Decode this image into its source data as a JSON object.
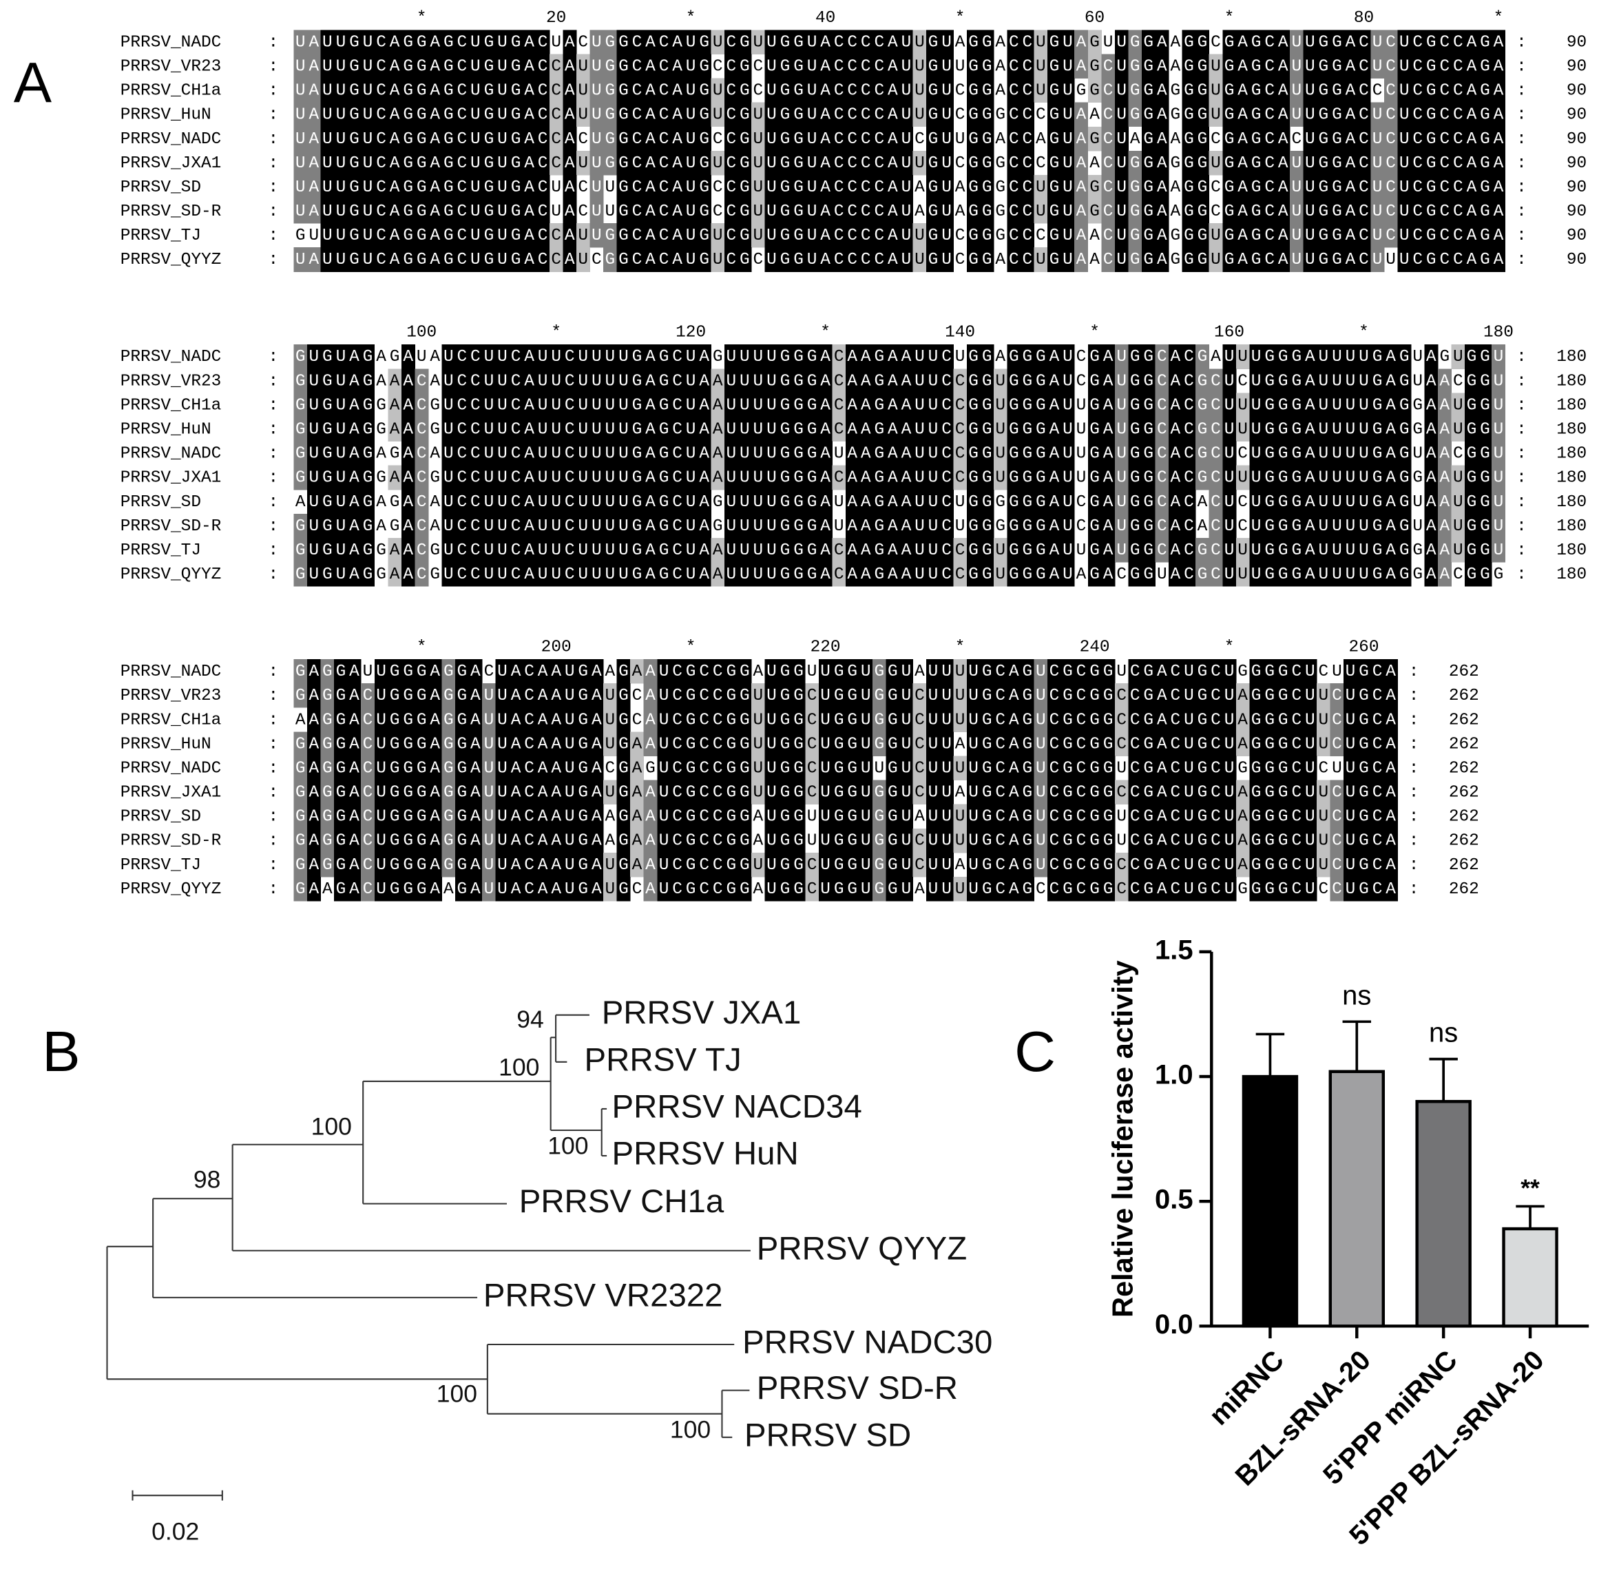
{
  "panels": {
    "a": "A",
    "b": "B",
    "c": "C"
  },
  "alignment": {
    "separator": ":",
    "blocks": [
      {
        "ruler": [
          "*",
          "20",
          "*",
          "40",
          "*",
          "60",
          "*",
          "80",
          "*"
        ],
        "end": 90,
        "rows": [
          {
            "name": "PRRSV_NADC",
            "seq": "UAUUGUCAGGAGCUGUGACUACUGGCACAUGUCGUUGGUACCCCAUUGUAGGACCUGUAGUUGGAAGGCGAGCAUUGGACUCUCGCCAGA"
          },
          {
            "name": "PRRSV_VR23",
            "seq": "UAUUGUCAGGAGCUGUGACCAUUGGCACAUGCCGCUGGUACCCCAUUGUUGGACCUGUAGCUGGAAGGUGAGCAUUGGACUCUCGCCAGA"
          },
          {
            "name": "PRRSV_CH1a",
            "seq": "UAUUGUCAGGAGCUGUGACCAUUGGCACAUGUCGCUGGUACCCCAUUGUCGGACCUGUGGCUGGAGGGUGAGCAUUGGACCCUCGCCAGA"
          },
          {
            "name": "PRRSV_HuN",
            "seq": "UAUUGUCAGGAGCUGUGACCAUUGGCACAUGUCGUUGGUACCCCAUUGUCGGGCCCGUAACUGGAGGGUGAGCAUUGGACUCUCGCCAGA"
          },
          {
            "name": "PRRSV_NADC",
            "seq": "UAUUGUCAGGAGCUGUGACCACUGGCACAUGCCGUUGGUACCCCAUCGUUGGACCAGUAGCUAGAAGGCGAGCACUGGACUCUCGCCAGA"
          },
          {
            "name": "PRRSV_JXA1",
            "seq": "UAUUGUCAGGAGCUGUGACCAUUGGCACAUGUCGUUGGUACCCCAUUGUCGGGCCCGUAACUGGAGGGUGAGCAUUGGACUCUCGCCAGA"
          },
          {
            "name": "PRRSV_SD",
            "seq": "UAUUGUCAGGAGCUGUGACUACUUGCACAUGCCGUUGGUACCCCAUAGUAGGGCCUGUAGCUGGAAGGCGAGCAUUGGACUCUCGCCAGA"
          },
          {
            "name": "PRRSV_SD-R",
            "seq": "UAUUGUCAGGAGCUGUGACUACUUGCACAUGCCGUUGGUACCCCAUAGUAGGGCCUGUAGCUGGAAGGCGAGCAUUGGACUCUCGCCAGA"
          },
          {
            "name": "PRRSV_TJ",
            "seq": "GUUUGUCAGGAGCUGUGACCAUUGGCACAUGUCGUUGGUACCCCAUUGUCGGGCCCGUAACUGGAGGGUGAGCAUUGGACUCUCGCCAGA"
          },
          {
            "name": "PRRSV_QYYZ",
            "seq": "UAUUGUCAGGAGCUGUGACCAUCGGCACAUGUCGCUGGUACCCCAUUGUCGGACCUGUAACUGGAGGGUGAGCAUUGGACUUUCGCCAGA"
          }
        ]
      },
      {
        "ruler": [
          "100",
          "*",
          "120",
          "*",
          "140",
          "*",
          "160",
          "*",
          "180"
        ],
        "end": 180,
        "rows": [
          {
            "name": "PRRSV_NADC",
            "seq": "GUGUAGAGAUAUCCUUCAUUCUUUUGAGCUAGUUUUGGGACAAGAAUUCUGGAGGGAUCGAUGGCACGAUUUGGGAUUUUGAGUAGUGGU"
          },
          {
            "name": "PRRSV_VR23",
            "seq": "GUGUAGAAACAUCCUUCAUUCUUUUGAGCUAAUUUUGGGACAAGAAUUCCGGUGGGAUCGAUGGCACGCUCUGGGAUUUUGAGUAACGGU"
          },
          {
            "name": "PRRSV_CH1a",
            "seq": "GUGUAGGAACGUCCUUCAUUCUUUUGAGCUAAUUUUGGGACAAGAAUUCCGGUGGGAUUGAUGGCACGCUUUGGGAUUUUGAGGAAUGGU"
          },
          {
            "name": "PRRSV_HuN",
            "seq": "GUGUAGGAACGUCCUUCAUUCUUUUGAGCUAAUUUUGGGACAAGAAUUCCGGUGGGAUUGAUGGCACGCUUUGGGAUUUUGAGGAAUGGU"
          },
          {
            "name": "PRRSV_NADC",
            "seq": "GUGUAGAGACAUCCUUCAUUCUUUUGAGCUAAUUUUGGGAUAAGAAUUCCGGUGGGAUUGAUGGCACGCUCUGGGAUUUUGAGUAACGGU"
          },
          {
            "name": "PRRSV_JXA1",
            "seq": "GUGUAGGAACGUCCUUCAUUCUUUUGAGCUAAUUUUGGGACAAGAAUUCCGGUGGGAUUGAUGGCACGCUUUGGGAUUUUGAGGAAUGGU"
          },
          {
            "name": "PRRSV_SD",
            "seq": "AUGUAGAGACAUCCUUCAUUCUUUUGAGCUAGUUUUGGGAUAAGAAUUCUGGGGGGAUCGAUGGCACACUCUGGGAUUUUGAGUAAUGGU"
          },
          {
            "name": "PRRSV_SD-R",
            "seq": "GUGUAGAGACAUCCUUCAUUCUUUUGAGCUAGUUUUGGGAUAAGAAUUCUGGGGGGAUCGAUGGCACACUCUGGGAUUUUGAGUAAUGGU"
          },
          {
            "name": "PRRSV_TJ",
            "seq": "GUGUAGGAACGUCCUUCAUUCUUUUGAGCUAAUUUUGGGACAAGAAUUCCGGUGGGAUUGAUGGCACGCUUUGGGAUUUUGAGGAAUGGU"
          },
          {
            "name": "PRRSV_QYYZ",
            "seq": "GUGUAGGAACGUCCUUCAUUCUUUUGAGCUAAUUUUGGGACAAGAAUUCCGGUGGGAUAGACGGUACGCUUUGGGAUUUUGAGGAACGGG"
          }
        ]
      },
      {
        "ruler": [
          "*",
          "200",
          "*",
          "220",
          "*",
          "240",
          "*",
          "260"
        ],
        "end": 262,
        "rows": [
          {
            "name": "PRRSV_NADC",
            "seq": "GAGGAUUGGGAGGACUACAAUGAAGAAUCGCCGGAUGGUUGGUGGUAUUUUGCAGUCGCGGUCGACUGCUGGGGCUCUUGCA"
          },
          {
            "name": "PRRSV_VR23",
            "seq": "GAGGACUGGGAGGAUUACAAUGAUGCAUCGCCGGUUGGCUGGUGGUCUUUUGCAGUCGCGGCCGACUGCUAGGGCUUCUGCA"
          },
          {
            "name": "PRRSV_CH1a",
            "seq": "AAGGACUGGGAGGAUUACAAUGAUGCAUCGCCGGUUGGCUGGUGGUCUUUUGCAGUCGCGGCCGACUGCUAGGGCUUCUGCA"
          },
          {
            "name": "PRRSV_HuN",
            "seq": "GAGGACUGGGAGGAUUACAAUGAUGAAUCGCCGGUUGGCUGGUGGUCUUAUGCAGUCGCGGCCGACUGCUAGGGCUUCUGCA"
          },
          {
            "name": "PRRSV_NADC",
            "seq": "GAGGACUGGGAGGAUUACAAUGACGAGUCGCCGGUUGGCUGGUUGUCUUUUGCAGUCGCGGUCGACUGCUGGGGCUCUUGCA"
          },
          {
            "name": "PRRSV_JXA1",
            "seq": "GAGGACUGGGAGGAUUACAAUGAUGAAUCGCCGGUUGGCUGGUGGUCUUAUGCAGUCGCGGCCGACUGCUAGGGCUUCUGCA"
          },
          {
            "name": "PRRSV_SD",
            "seq": "GAGGACUGGGAGGAUUACAAUGAAGAAUCGCCGGAUGGUUGGUGGUAUUUUGCAGUCGCGGUCGACUGCUAGGGCUUCUGCA"
          },
          {
            "name": "PRRSV_SD-R",
            "seq": "GAGGACUGGGAGGAUUACAAUGAAGAAUCGCCGGAUGGUUGGUGGUCUUUUGCAGUCGCGGUCGACUGCUAGGGCUUCUGCA"
          },
          {
            "name": "PRRSV_TJ",
            "seq": "GAGGACUGGGAGGAUUACAAUGAUGAAUCGCCGGUUGGCUGGUGGUCUUAUGCAGUCGCGGCCGACUGCUAGGGCUUCUGCA"
          },
          {
            "name": "PRRSV_QYYZ",
            "seq": "GAAGACUGGGAAGAUUACAAUGAUGCAUCGCCGGAUGGCUGGUGGUAUUUUGCAGCCGCGGCCGACUGCUGGGGCUCCUGCA"
          }
        ]
      }
    ]
  },
  "tree": {
    "leaves": [
      "PRRSV JXA1",
      "PRRSV TJ",
      "PRRSV NACD34",
      "PRRSV HuN",
      "PRRSV CH1a",
      "PRRSV QYYZ",
      "PRRSV VR2322",
      "PRRSV NADC30",
      "PRRSV SD-R",
      "PRRSV SD"
    ],
    "bootstrap": [
      94,
      100,
      100,
      100,
      98,
      100,
      100
    ],
    "scale": 0.02
  },
  "chart_data": {
    "type": "bar",
    "y_label": "Relative luciferase activity",
    "categories": [
      "miRNC",
      "BZL-sRNA-20",
      "5'PPP miRNC",
      "5'PPP BZL-sRNA-20"
    ],
    "values": [
      1.0,
      1.02,
      0.9,
      0.39
    ],
    "errors": [
      0.17,
      0.2,
      0.17,
      0.09
    ],
    "colors": [
      "#000000",
      "#a0a0a2",
      "#747476",
      "#d8dadb"
    ],
    "significance": [
      null,
      "ns",
      "ns",
      "**"
    ],
    "ylim": [
      0,
      1.5
    ],
    "yticks": [
      {
        "value": 0,
        "label": "0.0"
      },
      0.5,
      {
        "value": 1,
        "label": "1.0"
      },
      1.5
    ]
  }
}
